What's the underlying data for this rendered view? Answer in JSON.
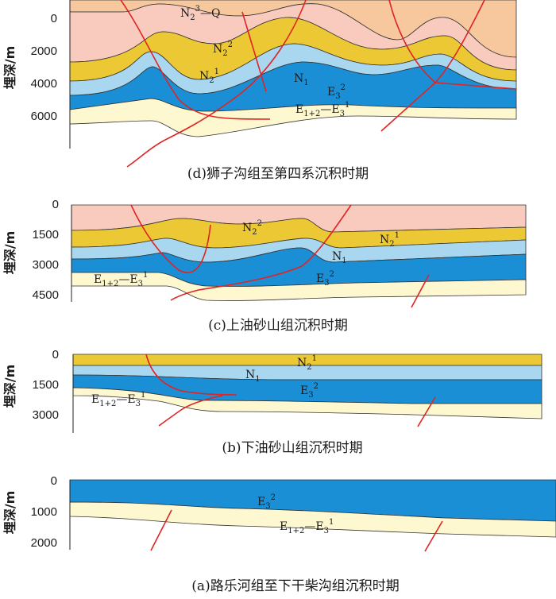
{
  "colors": {
    "q_orange": "#f7c79d",
    "n23_pink": "#f8cbbe",
    "n21_yellow": "#ecc934",
    "n1_lightblue": "#a9d7ef",
    "e32_blue": "#1a8fd5",
    "e12_cream": "#fdf8cf",
    "fault_red": "#e02424"
  },
  "y_axis_label": "埋深/m",
  "panels": {
    "d": {
      "caption": "(d)狮子沟组至第四系沉积时期",
      "ticks": [
        "0",
        "2000",
        "4000",
        "6000"
      ],
      "labels": {
        "n23q": {
          "main": "N",
          "sub": "2",
          "sup": "3",
          "tail": "—Q"
        },
        "n22": {
          "main": "N",
          "sub": "2",
          "sup": "2"
        },
        "n21": {
          "main": "N",
          "sub": "2",
          "sup": "1"
        },
        "n1": {
          "main": "N",
          "sub": "1"
        },
        "e32": {
          "main": "E",
          "sub": "3",
          "sup": "2"
        },
        "e12e31": {
          "main": "E",
          "sub": "1+2",
          "mid": "—E",
          "sub2": "3",
          "sup": "1"
        }
      }
    },
    "c": {
      "caption": "(c)上油砂山组沉积时期",
      "ticks": [
        "0",
        "1500",
        "3000",
        "4500"
      ],
      "labels": {
        "n22": {
          "main": "N",
          "sub": "2",
          "sup": "2"
        },
        "n21": {
          "main": "N",
          "sub": "2",
          "sup": "1"
        },
        "n1": {
          "main": "N",
          "sub": "1"
        },
        "e32": {
          "main": "E",
          "sub": "3",
          "sup": "2"
        },
        "e12e31": {
          "main": "E",
          "sub": "1+2",
          "mid": "—E",
          "sub2": "3",
          "sup": "1"
        }
      }
    },
    "b": {
      "caption": "(b)下油砂山组沉积时期",
      "ticks": [
        "0",
        "1500",
        "3000"
      ],
      "labels": {
        "n21": {
          "main": "N",
          "sub": "2",
          "sup": "1"
        },
        "n1": {
          "main": "N",
          "sub": "1"
        },
        "e32": {
          "main": "E",
          "sub": "3",
          "sup": "2"
        },
        "e12e31": {
          "main": "E",
          "sub": "1+2",
          "mid": "—E",
          "sub2": "3",
          "sup": "1"
        }
      }
    },
    "a": {
      "caption": "(a)路乐河组至下干柴沟组沉积时期",
      "ticks": [
        "0",
        "1000",
        "2000"
      ],
      "labels": {
        "e32": {
          "main": "E",
          "sub": "3",
          "sup": "2"
        },
        "e12e31": {
          "main": "E",
          "sub": "1+2",
          "mid": "—E",
          "sub2": "3",
          "sup": "1"
        }
      }
    }
  }
}
